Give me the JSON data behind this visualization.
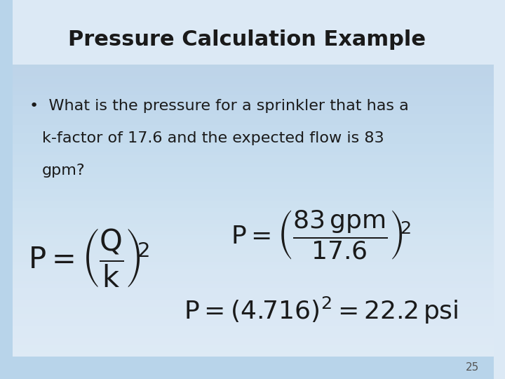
{
  "title": "Pressure Calculation Example",
  "bullet_text": "What is the pressure for a sprinkler that has a\nk-factor of 17.6 and the expected flow is 83\ngpm?",
  "formula_general": "P = \\left(\\frac{Q}{k}\\right)^2",
  "formula_substituted": "P = \\left(\\frac{83\\,\\mathrm{gpm}}{17.6}\\right)^2",
  "formula_result": "P = \\left(4.716\\right)^2 = 22.2\\,\\mathrm{psi}",
  "bg_color_top": "#dce9f5",
  "bg_color_bottom": "#c8dff0",
  "title_color": "#1a1a1a",
  "text_color": "#1a1a1a",
  "slide_number": "25",
  "title_fontsize": 22,
  "bullet_fontsize": 16,
  "formula_fontsize": 22,
  "formula_result_fontsize": 22
}
